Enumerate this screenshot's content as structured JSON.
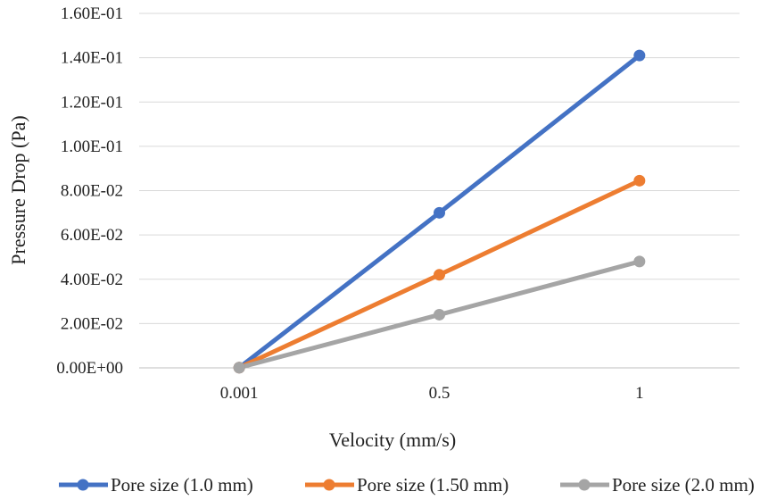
{
  "chart_data": {
    "type": "line",
    "title": "",
    "xlabel": "Velocity (mm/s)",
    "ylabel": "Pressure Drop (Pa)",
    "categories": [
      "0.001",
      "0.5",
      "1"
    ],
    "ylim": [
      0,
      0.16
    ],
    "yticks": [
      {
        "value": 0.0,
        "label": "0.00E+00"
      },
      {
        "value": 0.02,
        "label": "2.00E-02"
      },
      {
        "value": 0.04,
        "label": "4.00E-02"
      },
      {
        "value": 0.06,
        "label": "6.00E-02"
      },
      {
        "value": 0.08,
        "label": "8.00E-02"
      },
      {
        "value": 0.1,
        "label": "1.00E-01"
      },
      {
        "value": 0.12,
        "label": "1.20E-01"
      },
      {
        "value": 0.14,
        "label": "1.40E-01"
      },
      {
        "value": 0.16,
        "label": "1.60E-01"
      }
    ],
    "grid": true,
    "legend_position": "bottom",
    "series": [
      {
        "name": "Pore size (1.0 mm)",
        "color": "#4472c4",
        "values": [
          0.0001,
          0.07,
          0.141
        ]
      },
      {
        "name": "Pore size (1.50 mm)",
        "color": "#ed7d31",
        "values": [
          0.0001,
          0.042,
          0.0845
        ]
      },
      {
        "name": "Pore size (2.0 mm)",
        "color": "#a5a5a5",
        "values": [
          0.0001,
          0.024,
          0.048
        ]
      }
    ]
  }
}
